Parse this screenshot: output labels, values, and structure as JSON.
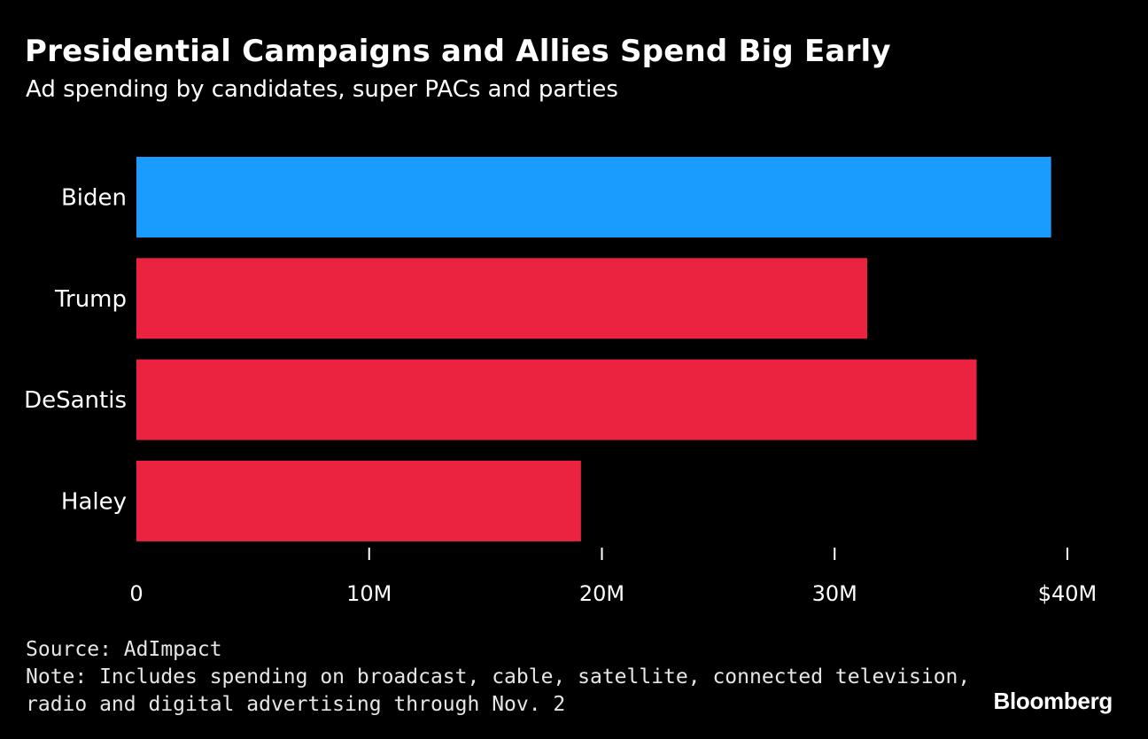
{
  "header": {
    "title": "Presidential Campaigns and Allies Spend Big Early",
    "subtitle": "Ad spending by candidates, super PACs and parties"
  },
  "footer": {
    "source": "Source: AdImpact",
    "note_line1": "Note: Includes spending on broadcast, cable, satellite, connected television,",
    "note_line2": "radio and digital advertising through Nov. 2",
    "brand": "Bloomberg"
  },
  "colors": {
    "background": "#000000",
    "democrat": "#1a9cff",
    "republican": "#ec2340",
    "text": "#ffffff"
  },
  "chart_data": {
    "type": "bar",
    "orientation": "horizontal",
    "title": "Presidential Campaigns and Allies Spend Big Early",
    "subtitle": "Ad spending by candidates, super PACs and parties",
    "xlabel": "",
    "ylabel": "",
    "categories": [
      "Biden",
      "Trump",
      "DeSantis",
      "Haley"
    ],
    "values": [
      39.3,
      31.4,
      36.1,
      19.1
    ],
    "bar_colors": [
      "#1a9cff",
      "#ec2340",
      "#ec2340",
      "#ec2340"
    ],
    "xlim": [
      0,
      40
    ],
    "ticks": [
      0,
      10,
      20,
      30,
      40
    ],
    "tick_labels": [
      "0",
      "10M",
      "20M",
      "30M",
      "$40M"
    ],
    "grid": false,
    "legend": "none"
  }
}
